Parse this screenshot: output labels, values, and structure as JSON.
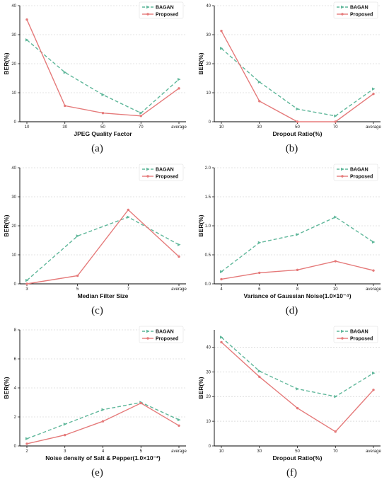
{
  "colors": {
    "bagan": "#5fb79a",
    "proposed": "#e57a7a",
    "grid": "#c8c8c8",
    "axis": "#000000"
  },
  "chart_data": [
    {
      "type": "line",
      "panel_label": "(a)",
      "xlabel": "JPEG Quality Factor",
      "ylabel": "BER(%)",
      "categories": [
        "10",
        "30",
        "50",
        "70",
        "average"
      ],
      "ylim": [
        0,
        40
      ],
      "yticks": [
        "0",
        "10",
        "20",
        "30",
        "40"
      ],
      "grid": true,
      "legend_position": "top-right",
      "series": [
        {
          "name": "BAGAN",
          "style": "dashed",
          "marker": "triangle-right",
          "values": [
            28.2,
            17.0,
            9.3,
            3.0,
            14.6
          ]
        },
        {
          "name": "Proposed",
          "style": "solid",
          "marker": "circle",
          "values": [
            35.2,
            5.5,
            3.0,
            2.0,
            11.5
          ]
        }
      ]
    },
    {
      "type": "line",
      "panel_label": "(b)",
      "xlabel": "Dropout Ratio(%)",
      "ylabel": "BER(%)",
      "categories": [
        "10",
        "30",
        "50",
        "70",
        "average"
      ],
      "ylim": [
        0,
        40
      ],
      "yticks": [
        "0",
        "10",
        "20",
        "30",
        "40"
      ],
      "grid": true,
      "legend_position": "top-right",
      "series": [
        {
          "name": "BAGAN",
          "style": "dashed",
          "marker": "triangle-right",
          "values": [
            25.3,
            13.7,
            4.4,
            2.0,
            11.3
          ]
        },
        {
          "name": "Proposed",
          "style": "solid",
          "marker": "circle",
          "values": [
            31.3,
            7.1,
            0.0,
            0.0,
            9.6
          ]
        }
      ]
    },
    {
      "type": "line",
      "panel_label": "(c)",
      "xlabel": "Median Filter Size",
      "ylabel": "BER(%)",
      "categories": [
        "3",
        "5",
        "7",
        "average"
      ],
      "ylim": [
        0,
        40
      ],
      "yticks": [
        "0",
        "10",
        "20",
        "30",
        "40"
      ],
      "grid": true,
      "legend_position": "top-right",
      "series": [
        {
          "name": "BAGAN",
          "style": "dashed",
          "marker": "triangle-right",
          "values": [
            1.2,
            16.5,
            23.0,
            13.5
          ]
        },
        {
          "name": "Proposed",
          "style": "solid",
          "marker": "circle",
          "values": [
            0.0,
            2.8,
            25.5,
            9.4
          ]
        }
      ]
    },
    {
      "type": "line",
      "panel_label": "(d)",
      "xlabel": "Variance of Gaussian Noise(1.0×10⁻⁴)",
      "ylabel": "BER(%)",
      "categories": [
        "4",
        "6",
        "8",
        "10",
        "average"
      ],
      "ylim": [
        0,
        2.0
      ],
      "yticks": [
        "0.0",
        "0.5",
        "1.0",
        "1.5",
        "2.0"
      ],
      "grid": true,
      "legend_position": "top-right",
      "series": [
        {
          "name": "BAGAN",
          "style": "dashed",
          "marker": "triangle-right",
          "values": [
            0.21,
            0.71,
            0.85,
            1.15,
            0.72
          ]
        },
        {
          "name": "Proposed",
          "style": "solid",
          "marker": "circle",
          "values": [
            0.08,
            0.19,
            0.24,
            0.39,
            0.23
          ]
        }
      ]
    },
    {
      "type": "line",
      "panel_label": "(e)",
      "xlabel": "Noise density of Salt & Pepper(1.0×10⁻²)",
      "ylabel": "BER(%)",
      "categories": [
        "2",
        "3",
        "4",
        "5",
        "average"
      ],
      "ylim": [
        0,
        8
      ],
      "yticks": [
        "0",
        "2",
        "4",
        "6",
        "8"
      ],
      "grid": true,
      "legend_position": "top-right",
      "series": [
        {
          "name": "BAGAN",
          "style": "dashed",
          "marker": "triangle-right",
          "values": [
            0.5,
            1.5,
            2.5,
            3.0,
            1.8
          ]
        },
        {
          "name": "Proposed",
          "style": "solid",
          "marker": "circle",
          "values": [
            0.15,
            0.75,
            1.7,
            2.95,
            1.4
          ]
        }
      ]
    },
    {
      "type": "line",
      "panel_label": "(f)",
      "xlabel": "Dropout Ratio(%)",
      "ylabel": "BER(%)",
      "categories": [
        "10",
        "30",
        "50",
        "70",
        "average"
      ],
      "ylim": [
        0,
        47
      ],
      "yticks": [
        "0",
        "10",
        "20",
        "30",
        "40"
      ],
      "grid": true,
      "legend_position": "top-right",
      "series": [
        {
          "name": "BAGAN",
          "style": "dashed",
          "marker": "triangle-right",
          "values": [
            44.0,
            30.3,
            23.1,
            20.0,
            29.5
          ]
        },
        {
          "name": "Proposed",
          "style": "solid",
          "marker": "circle",
          "values": [
            42.0,
            28.0,
            15.3,
            5.8,
            22.7
          ]
        }
      ]
    }
  ]
}
